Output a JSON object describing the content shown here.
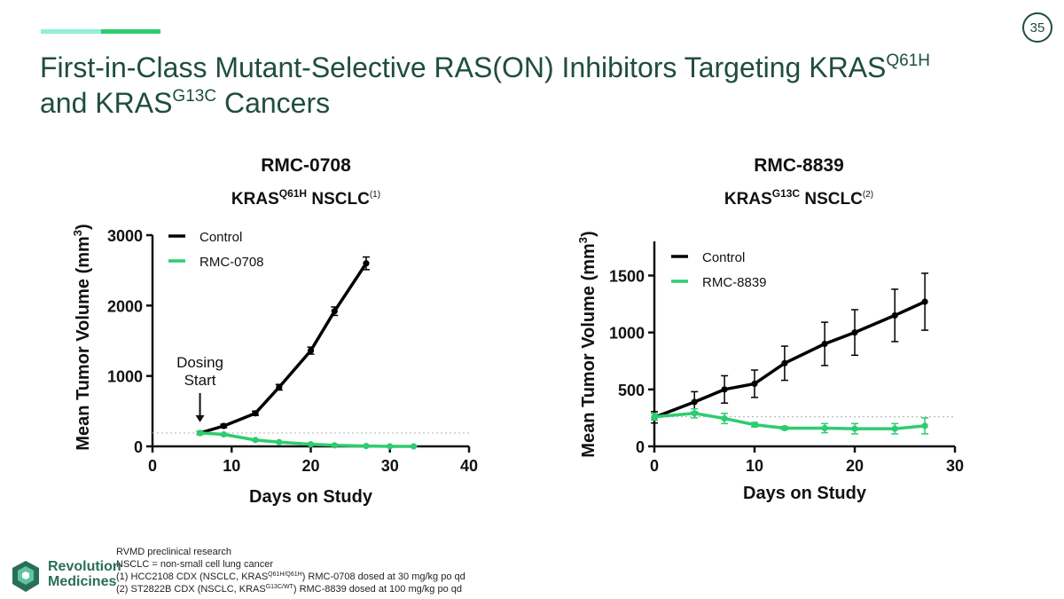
{
  "page": {
    "number": "35",
    "title_part1": "First-in-Class Mutant-Selective RAS(ON) Inhibitors Targeting KRAS",
    "title_sup1": "Q61H",
    "title_part2": "and KRAS",
    "title_sup2": "G13C",
    "title_part3": " Cancers",
    "colors": {
      "title": "#1f4d3f",
      "accent_light": "#8ef0d8",
      "accent_dark": "#2ecc71",
      "control": "#000000",
      "treatment": "#2ecc71"
    }
  },
  "chart_data": [
    {
      "type": "line",
      "title": "RMC-0708",
      "subtitle_main": "KRAS",
      "subtitle_sup": "Q61H",
      "subtitle_rest": " NSCLC",
      "subtitle_ref": "(1)",
      "xlabel": "Days on Study",
      "ylabel": "Mean Tumor Volume (mm",
      "ylabel_sup": "3",
      "ylabel_close": ")",
      "xlim": [
        0,
        40
      ],
      "ylim": [
        0,
        3000
      ],
      "xticks": [
        0,
        10,
        20,
        30,
        40
      ],
      "yticks": [
        0,
        1000,
        2000,
        3000
      ],
      "baseline": 190,
      "annotation_line1": "Dosing",
      "annotation_line2": "Start",
      "annotation_x": 6,
      "legend_position": "top-left",
      "series": [
        {
          "name": "Control",
          "color": "#000000",
          "x": [
            6,
            9,
            13,
            16,
            20,
            23,
            27
          ],
          "values": [
            190,
            290,
            470,
            840,
            1360,
            1920,
            2600
          ],
          "errors": [
            20,
            25,
            30,
            40,
            50,
            60,
            90
          ]
        },
        {
          "name": "RMC-0708",
          "color": "#2ecc71",
          "x": [
            6,
            9,
            13,
            16,
            20,
            23,
            27,
            30,
            33
          ],
          "values": [
            190,
            170,
            90,
            60,
            30,
            15,
            5,
            0,
            0
          ],
          "errors": [
            15,
            15,
            10,
            8,
            6,
            5,
            3,
            2,
            2
          ]
        }
      ]
    },
    {
      "type": "line",
      "title": "RMC-8839",
      "subtitle_main": "KRAS",
      "subtitle_sup": "G13C",
      "subtitle_rest": " NSCLC",
      "subtitle_ref": "(2)",
      "xlabel": "Days on Study",
      "ylabel": "Mean Tumor Volume (mm",
      "ylabel_sup": "3",
      "ylabel_close": ")",
      "xlim": [
        0,
        30
      ],
      "ylim": [
        0,
        1800
      ],
      "xticks": [
        0,
        10,
        20,
        30
      ],
      "yticks": [
        0,
        500,
        1000,
        1500
      ],
      "baseline": 260,
      "legend_position": "top-left",
      "series": [
        {
          "name": "Control",
          "color": "#000000",
          "x": [
            0,
            4,
            7,
            10,
            13,
            17,
            20,
            24,
            27
          ],
          "values": [
            255,
            390,
            500,
            550,
            730,
            900,
            1000,
            1150,
            1270
          ],
          "errors": [
            50,
            90,
            120,
            120,
            150,
            190,
            200,
            230,
            250
          ]
        },
        {
          "name": "RMC-8839",
          "color": "#2ecc71",
          "x": [
            0,
            4,
            7,
            10,
            13,
            17,
            20,
            24,
            27
          ],
          "values": [
            260,
            290,
            245,
            190,
            160,
            160,
            155,
            155,
            180
          ],
          "errors": [
            30,
            40,
            45,
            20,
            15,
            40,
            45,
            45,
            70
          ]
        }
      ]
    }
  ],
  "footnotes": {
    "line1": "RVMD preclinical research",
    "line2": "NSCLC = non-small cell lung cancer",
    "line3_a": "(1) HCC2108 CDX (NSCLC, KRAS",
    "line3_sup": "Q61H/Q61H",
    "line3_b": ") RMC-0708 dosed at 30 mg/kg po qd",
    "line4_a": "(2) ST2822B CDX (NSCLC, KRAS",
    "line4_sup": "G13C/WT",
    "line4_b": ") RMC-8839 dosed at 100 mg/kg po qd"
  },
  "logo": {
    "line1": "Revolution",
    "line2": "Medicines"
  }
}
